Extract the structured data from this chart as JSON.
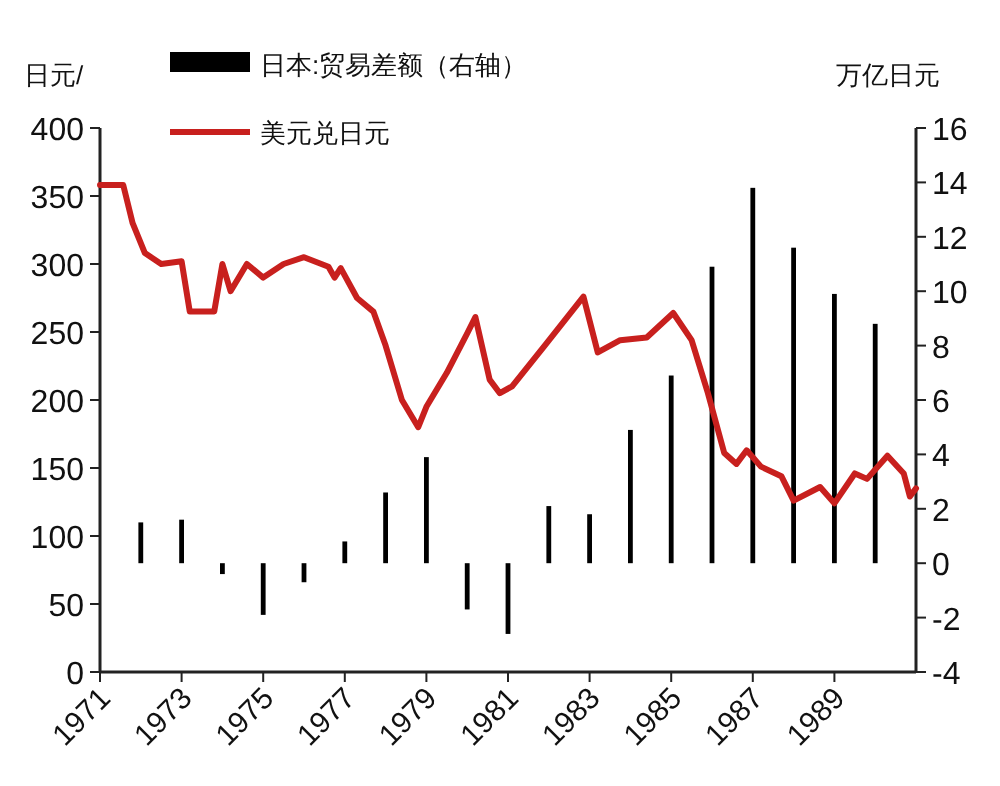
{
  "chart_data": {
    "type": "line",
    "ylabel": "日元/",
    "y2label": "万亿日元",
    "legend": "top",
    "grid": false,
    "xlim": [
      1971,
      1991
    ],
    "xticks": [
      1971,
      1973,
      1975,
      1977,
      1979,
      1981,
      1983,
      1985,
      1987,
      1989
    ],
    "ylim": [
      0,
      400
    ],
    "yticks": [
      0,
      50,
      100,
      150,
      200,
      250,
      300,
      350,
      400
    ],
    "y2lim": [
      -4,
      16
    ],
    "y2ticks": [
      -4,
      -2,
      0,
      2,
      4,
      6,
      8,
      10,
      12,
      14,
      16
    ],
    "series": [
      {
        "name": "日本:贸易差额（右轴）",
        "type": "bar",
        "axis": "y2",
        "color": "#000000",
        "x": [
          1972,
          1973,
          1974,
          1975,
          1976,
          1977,
          1978,
          1979,
          1980,
          1981,
          1982,
          1983,
          1984,
          1985,
          1986,
          1987,
          1988,
          1989,
          1990
        ],
        "values": [
          1.5,
          1.6,
          -0.4,
          -1.9,
          -0.7,
          0.8,
          2.6,
          3.9,
          -1.7,
          -2.6,
          2.1,
          1.8,
          4.9,
          6.9,
          10.9,
          13.8,
          11.6,
          9.9,
          8.8
        ]
      },
      {
        "name": "美元兑日元",
        "color": "#c8201e",
        "x": [
          1971,
          1971.57,
          1971.8,
          1972.1,
          1972.5,
          1973.0,
          1973.2,
          1973.8,
          1974.0,
          1974.2,
          1974.6,
          1975.0,
          1975.5,
          1976.0,
          1976.6,
          1976.75,
          1976.9,
          1977.3,
          1977.7,
          1978.0,
          1978.4,
          1978.8,
          1979.0,
          1979.5,
          1980.0,
          1980.2,
          1980.55,
          1980.8,
          1981.1,
          1981.9,
          1982.85,
          1983.2,
          1983.75,
          1984.4,
          1985.05,
          1985.5,
          1985.9,
          1986.3,
          1986.6,
          1986.85,
          1987.2,
          1987.7,
          1988.0,
          1988.65,
          1989.0,
          1989.5,
          1989.8,
          1990.3,
          1990.7,
          1990.85,
          1991
        ],
        "values": [
          358,
          358,
          330,
          308,
          300,
          302,
          265,
          265,
          300,
          280,
          300,
          290,
          300,
          305,
          298,
          290,
          297,
          275,
          265,
          240,
          200,
          180,
          195,
          220,
          249,
          261,
          215,
          205,
          210,
          240,
          276,
          235,
          244,
          246,
          264,
          244,
          205,
          161,
          153,
          163,
          151,
          144,
          126,
          136,
          124,
          146,
          142,
          159,
          146,
          129,
          135
        ]
      }
    ]
  }
}
